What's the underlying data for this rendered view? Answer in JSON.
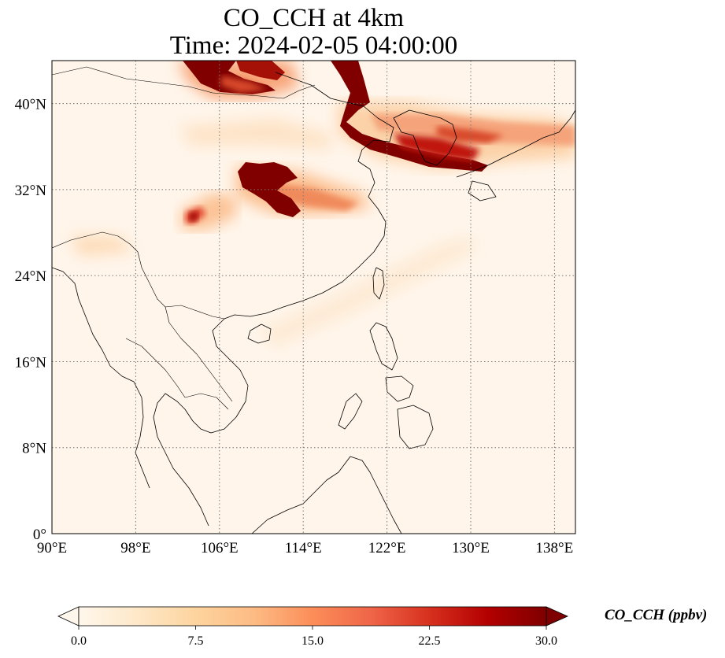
{
  "title": {
    "line1": "CO_CCH at 4km",
    "line2": "Time: 2024-02-05 04:00:00"
  },
  "map": {
    "projection": "PlateCarree",
    "lon_range": [
      90,
      140
    ],
    "lat_range": [
      0,
      44
    ],
    "lon_ticks": [
      "90°E",
      "98°E",
      "106°E",
      "114°E",
      "122°E",
      "130°E",
      "138°E"
    ],
    "lat_ticks": [
      "0°",
      "8°N",
      "16°N",
      "24°N",
      "32°N",
      "40°N"
    ],
    "gridlines": "dotted",
    "coastlines": true,
    "borders": true,
    "plumes": [
      {
        "name": "northern-plume",
        "region": "Mongolia / N. China",
        "level": "high"
      },
      {
        "name": "korea-japan-band",
        "region": "Yellow Sea to Sea of Japan",
        "level": "high"
      },
      {
        "name": "central-china-blob",
        "region": "Shaanxi / Henan",
        "level": "high"
      },
      {
        "name": "sichuan-patch",
        "region": "Sichuan Basin",
        "level": "medium"
      }
    ]
  },
  "colorbar": {
    "colormap": "OrRd",
    "colors": [
      "#fff7ec",
      "#fee8c8",
      "#fdd49e",
      "#fdbb84",
      "#fc8d59",
      "#ef6548",
      "#d7301f",
      "#b30000",
      "#7f0000"
    ],
    "min": 0.0,
    "max": 30.0,
    "ticks": [
      "0.0",
      "7.5",
      "15.0",
      "22.5",
      "30.0"
    ],
    "extend": "both",
    "label": "CO_CCH (ppbv)"
  }
}
